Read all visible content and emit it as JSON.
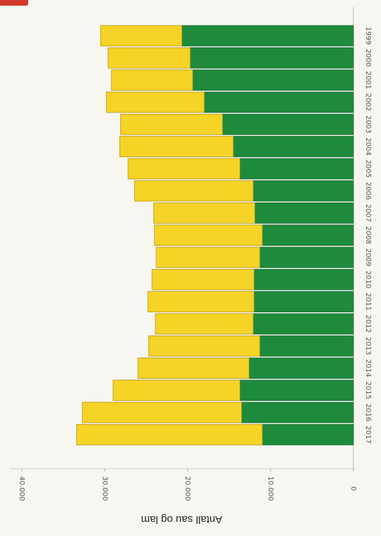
{
  "chart_data": {
    "type": "bar",
    "orientation": "horizontal-stacked",
    "categories": [
      "1999",
      "2000",
      "2001",
      "2002",
      "2003",
      "2004",
      "2005",
      "2006",
      "2007",
      "2008",
      "2009",
      "2010",
      "2011",
      "2012",
      "2013",
      "2014",
      "2015",
      "2016",
      "2017"
    ],
    "series": [
      {
        "values": [
          20700,
          19700,
          19400,
          18000,
          15800,
          14500,
          13700,
          12100,
          11900,
          11000,
          11300,
          12000,
          12000,
          12100,
          11300,
          12600,
          13700,
          13500,
          11000
        ],
        "color": "#1e8a3c"
      },
      {
        "values": [
          9800,
          9900,
          9800,
          11800,
          12300,
          13700,
          13500,
          14300,
          12200,
          13000,
          12500,
          12300,
          12800,
          11800,
          13400,
          13400,
          15300,
          19200,
          22400
        ],
        "color": "#f5d327"
      }
    ],
    "value_axis": {
      "min": 0,
      "max": 40000,
      "ticks": [
        0,
        10000,
        20000,
        30000,
        40000
      ],
      "tick_labels": [
        "0",
        "10.000",
        "20.000",
        "30.000",
        "40.000"
      ]
    },
    "ylabel": "Antall sau og lam",
    "grid": false,
    "legend": "none"
  }
}
